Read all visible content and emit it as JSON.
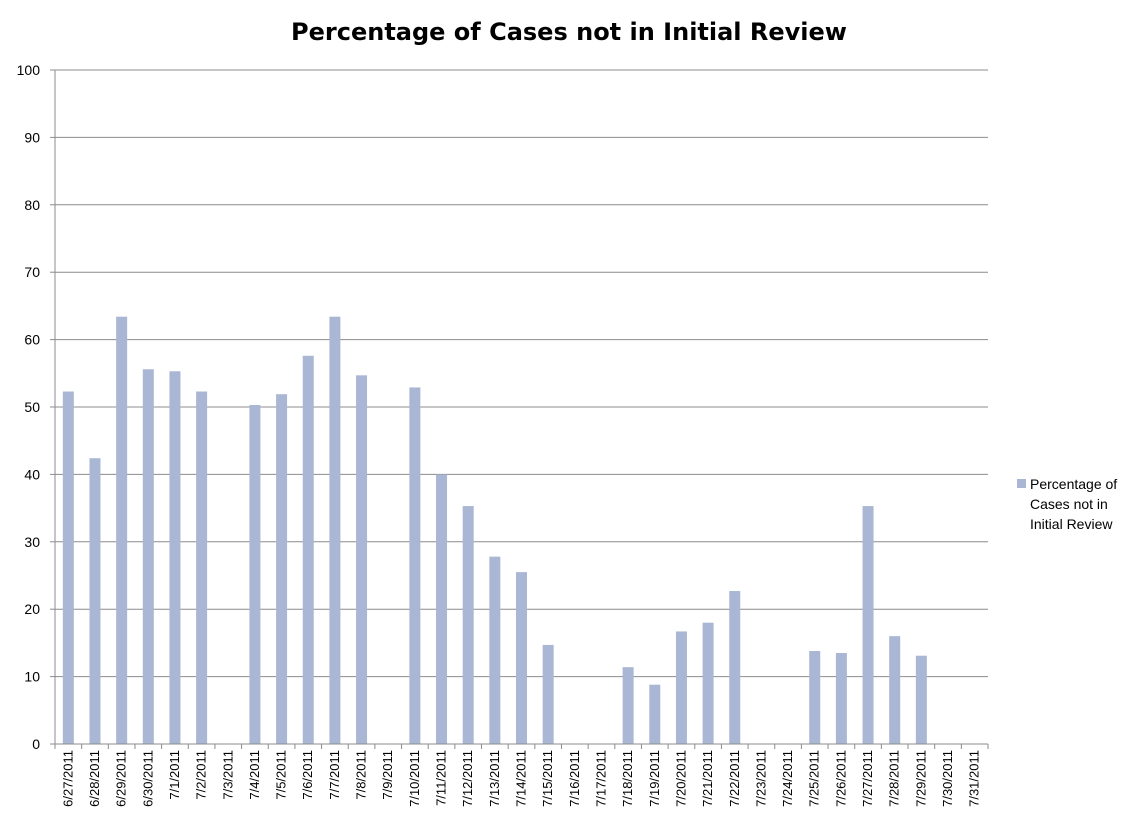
{
  "chart_data": {
    "type": "bar",
    "title": "Percentage of Cases not in Initial Review",
    "xlabel": "",
    "ylabel": "",
    "ylim": [
      0,
      100
    ],
    "yticks": [
      0,
      10,
      20,
      30,
      40,
      50,
      60,
      70,
      80,
      90,
      100
    ],
    "grid": true,
    "legend_position": "right",
    "categories": [
      "6/27/2011",
      "6/28/2011",
      "6/29/2011",
      "6/30/2011",
      "7/1/2011",
      "7/2/2011",
      "7/3/2011",
      "7/4/2011",
      "7/5/2011",
      "7/6/2011",
      "7/7/2011",
      "7/8/2011",
      "7/9/2011",
      "7/10/2011",
      "7/11/2011",
      "7/12/2011",
      "7/13/2011",
      "7/14/2011",
      "7/15/2011",
      "7/16/2011",
      "7/17/2011",
      "7/18/2011",
      "7/19/2011",
      "7/20/2011",
      "7/21/2011",
      "7/22/2011",
      "7/23/2011",
      "7/24/2011",
      "7/25/2011",
      "7/26/2011",
      "7/27/2011",
      "7/28/2011",
      "7/29/2011",
      "7/30/2011",
      "7/31/2011"
    ],
    "series": [
      {
        "name": "Percentage of Cases not in Initial Review",
        "color": "#a9b7d4",
        "values": [
          52.3,
          42.4,
          63.4,
          55.6,
          55.3,
          52.3,
          null,
          50.3,
          51.9,
          57.6,
          63.4,
          54.7,
          null,
          52.9,
          40.0,
          35.3,
          27.8,
          25.5,
          14.7,
          null,
          null,
          11.4,
          8.8,
          16.7,
          18.0,
          22.7,
          null,
          null,
          13.8,
          13.5,
          35.3,
          16.0,
          13.1,
          null,
          null
        ]
      }
    ],
    "legend_lines": [
      "Percentage of",
      "Cases not in",
      "Initial Review"
    ]
  }
}
